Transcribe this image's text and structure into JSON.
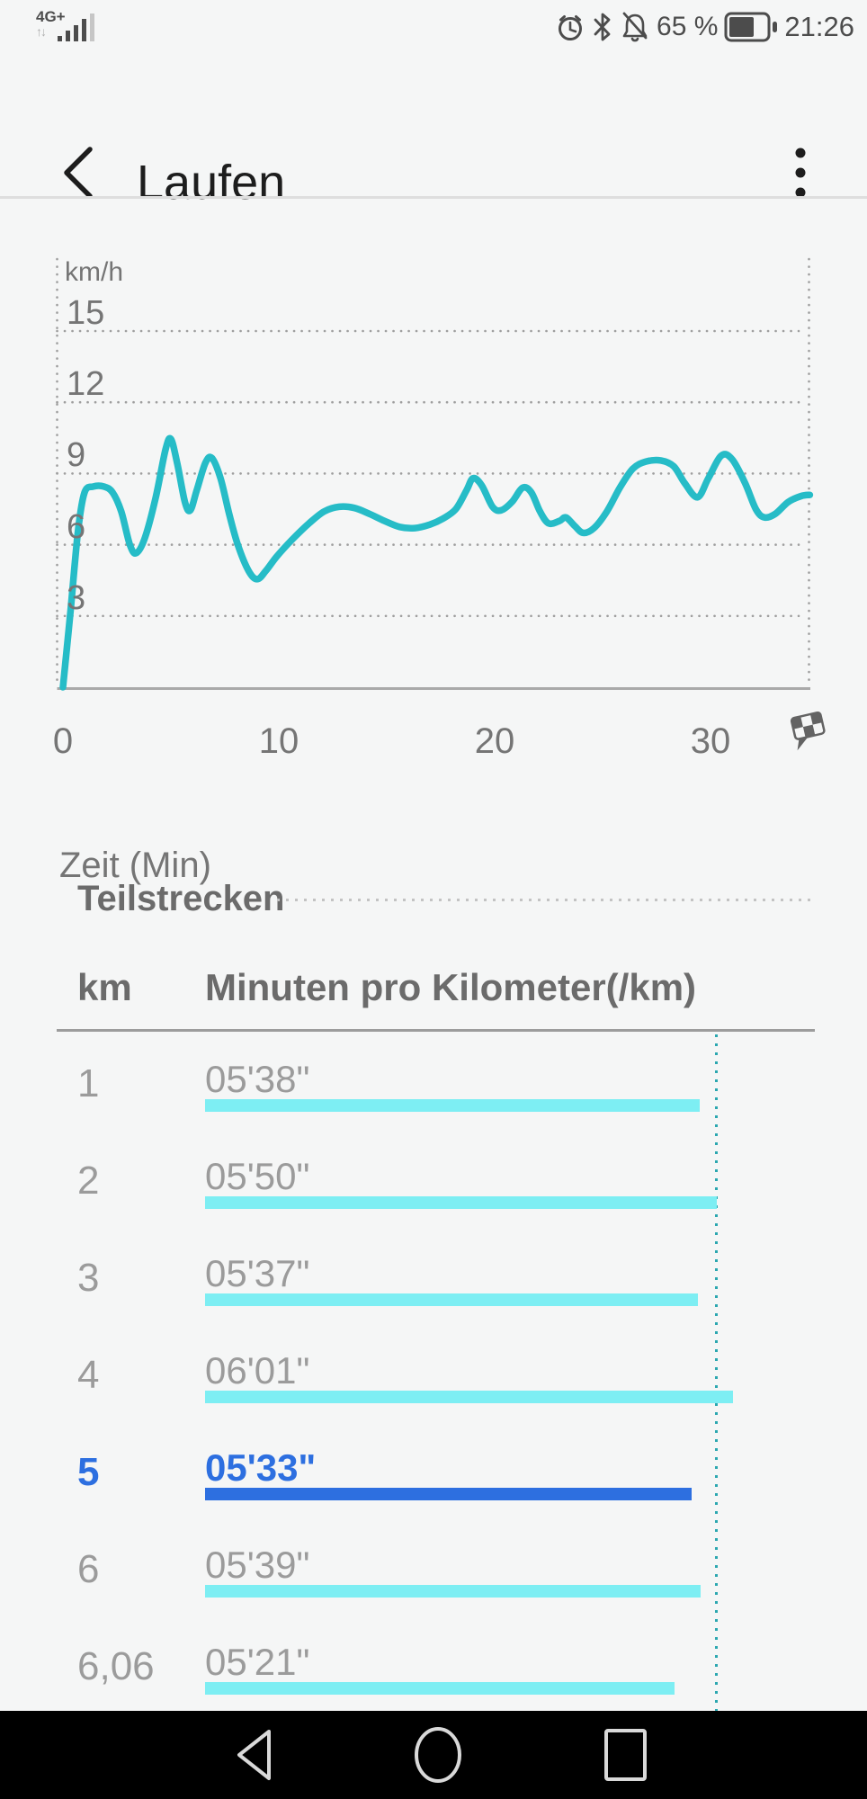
{
  "status_bar": {
    "network": "4G+",
    "network_arrows": "↑↓",
    "battery": "65 %",
    "time": "21:26",
    "icons": [
      "signal-bars-icon",
      "alarm-icon",
      "bluetooth-icon",
      "notifications-off-icon",
      "battery-icon"
    ]
  },
  "header": {
    "title": "Laufen",
    "back_icon": "back-chevron",
    "menu_icon": "kebab-menu"
  },
  "chart_data": {
    "type": "line",
    "title": "",
    "ylabel": "km/h",
    "xlabel": "Zeit (Min)",
    "y_ticks": [
      15,
      12,
      9,
      6,
      3
    ],
    "x_ticks": [
      0,
      10,
      20,
      30
    ],
    "xlim": [
      0,
      35
    ],
    "ylim": [
      0,
      18
    ],
    "grid": "dotted",
    "legend": "none",
    "line_color": "#26bcc7",
    "end_marker": "checkered-flag-icon",
    "series": [
      {
        "name": "km/h",
        "points": [
          [
            0,
            0
          ],
          [
            0.35,
            3.2
          ],
          [
            0.7,
            6.6
          ],
          [
            1.0,
            8.2
          ],
          [
            1.4,
            8.45
          ],
          [
            1.9,
            8.45
          ],
          [
            2.3,
            8.2
          ],
          [
            2.7,
            7.4
          ],
          [
            3.1,
            6.0
          ],
          [
            3.4,
            5.65
          ],
          [
            3.8,
            6.3
          ],
          [
            4.3,
            8.0
          ],
          [
            4.75,
            10.0
          ],
          [
            5.0,
            10.45
          ],
          [
            5.3,
            9.4
          ],
          [
            5.65,
            7.8
          ],
          [
            5.9,
            7.45
          ],
          [
            6.2,
            8.3
          ],
          [
            6.6,
            9.45
          ],
          [
            6.9,
            9.65
          ],
          [
            7.3,
            8.8
          ],
          [
            7.7,
            7.3
          ],
          [
            8.1,
            6.0
          ],
          [
            8.6,
            4.9
          ],
          [
            9.0,
            4.55
          ],
          [
            9.4,
            4.9
          ],
          [
            9.9,
            5.5
          ],
          [
            10.6,
            6.2
          ],
          [
            11.4,
            6.9
          ],
          [
            12.1,
            7.4
          ],
          [
            12.8,
            7.6
          ],
          [
            13.5,
            7.55
          ],
          [
            14.2,
            7.3
          ],
          [
            14.9,
            7.0
          ],
          [
            15.6,
            6.75
          ],
          [
            16.3,
            6.7
          ],
          [
            17.0,
            6.85
          ],
          [
            17.6,
            7.1
          ],
          [
            18.2,
            7.5
          ],
          [
            18.7,
            8.3
          ],
          [
            19.0,
            8.8
          ],
          [
            19.4,
            8.5
          ],
          [
            19.9,
            7.6
          ],
          [
            20.3,
            7.45
          ],
          [
            20.8,
            7.8
          ],
          [
            21.3,
            8.4
          ],
          [
            21.7,
            8.2
          ],
          [
            22.1,
            7.4
          ],
          [
            22.5,
            6.9
          ],
          [
            23.0,
            7.0
          ],
          [
            23.3,
            7.15
          ],
          [
            23.7,
            6.8
          ],
          [
            24.1,
            6.5
          ],
          [
            24.6,
            6.7
          ],
          [
            25.2,
            7.4
          ],
          [
            25.8,
            8.4
          ],
          [
            26.4,
            9.2
          ],
          [
            27.0,
            9.5
          ],
          [
            27.7,
            9.55
          ],
          [
            28.3,
            9.3
          ],
          [
            28.8,
            8.6
          ],
          [
            29.4,
            8.0
          ],
          [
            29.9,
            8.8
          ],
          [
            30.5,
            9.75
          ],
          [
            31.0,
            9.6
          ],
          [
            31.6,
            8.6
          ],
          [
            32.1,
            7.5
          ],
          [
            32.5,
            7.15
          ],
          [
            33.0,
            7.3
          ],
          [
            33.6,
            7.8
          ],
          [
            34.2,
            8.05
          ],
          [
            34.6,
            8.1
          ]
        ]
      }
    ]
  },
  "splits": {
    "title": "Teilstrecken",
    "columns": [
      "km",
      "Minuten pro Kilometer(/km)"
    ],
    "bar_color": "#7deef3",
    "highlight_color": "#2d6fe0",
    "rows": [
      {
        "km": "1",
        "pace": "05'38\"",
        "highlight": false
      },
      {
        "km": "2",
        "pace": "05'50\"",
        "highlight": false
      },
      {
        "km": "3",
        "pace": "05'37\"",
        "highlight": false
      },
      {
        "km": "4",
        "pace": "06'01\"",
        "highlight": false
      },
      {
        "km": "5",
        "pace": "05'33\"",
        "highlight": true
      },
      {
        "km": "6",
        "pace": "05'39\"",
        "highlight": false
      },
      {
        "km": "6,06",
        "pace": "05'21\"",
        "highlight": false
      }
    ]
  },
  "nav_bar": {
    "icons": [
      "back-triangle-icon",
      "home-circle-icon",
      "recents-square-icon"
    ]
  }
}
